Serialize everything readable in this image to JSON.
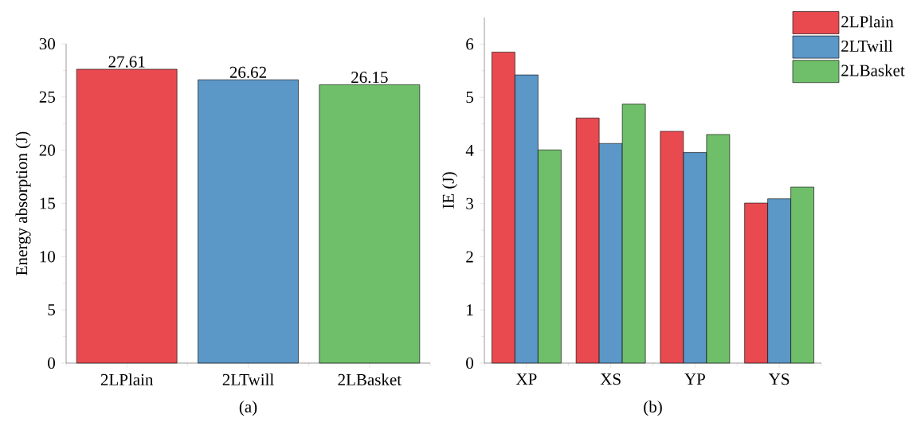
{
  "chart_data": [
    {
      "type": "bar",
      "categories": [
        "2LPlain",
        "2LTwill",
        "2LBasket"
      ],
      "values": [
        27.61,
        26.62,
        26.15
      ],
      "colors": [
        "#e84a50",
        "#5b97c7",
        "#6fbe6a"
      ],
      "ylabel": "Energy absorption (J)",
      "ylim": [
        0,
        30
      ],
      "yticks": [
        0,
        5,
        10,
        15,
        20,
        25,
        30
      ],
      "data_labels": true,
      "annotations": [
        "(a)"
      ]
    },
    {
      "type": "bar",
      "categories": [
        "XP",
        "XS",
        "YP",
        "YS"
      ],
      "ylabel": "IE (J)",
      "ylim": [
        0,
        6.5
      ],
      "yticks": [
        0,
        1,
        2,
        3,
        4,
        5,
        6
      ],
      "legend": "top right",
      "annotations": [
        "(b)"
      ],
      "series": [
        {
          "name": "2LPlain",
          "color": "#e84a50",
          "values": [
            5.85,
            4.61,
            4.36,
            3.01
          ]
        },
        {
          "name": "2LTwill",
          "color": "#5b97c7",
          "values": [
            5.42,
            4.13,
            3.96,
            3.09
          ]
        },
        {
          "name": "2LBasket",
          "color": "#6fbe6a",
          "values": [
            4.01,
            4.87,
            4.3,
            3.31
          ]
        }
      ]
    }
  ]
}
